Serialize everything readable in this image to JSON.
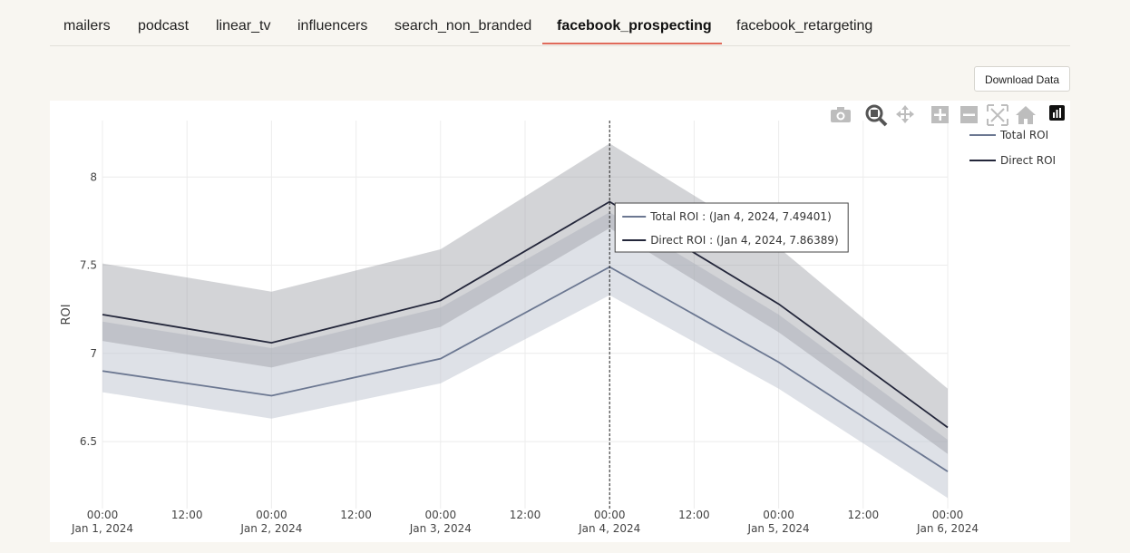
{
  "tabs": [
    {
      "label": "mailers"
    },
    {
      "label": "podcast"
    },
    {
      "label": "linear_tv"
    },
    {
      "label": "influencers"
    },
    {
      "label": "search_non_branded"
    },
    {
      "label": "facebook_prospecting",
      "active": true
    },
    {
      "label": "facebook_retargeting"
    }
  ],
  "download_label": "Download Data",
  "modebar": [
    "camera-icon",
    "zoom-icon",
    "pan-icon",
    "zoom-in-icon",
    "zoom-out-icon",
    "autoscale-icon",
    "reset-axes-icon",
    "plotly-logo-icon"
  ],
  "chart_data": {
    "type": "line",
    "ylabel": "ROI",
    "ylim": [
      6.12,
      8.32
    ],
    "yticks": [
      6.5,
      7,
      7.5,
      8
    ],
    "x": [
      "2024-01-01",
      "2024-01-02",
      "2024-01-03",
      "2024-01-04",
      "2024-01-05",
      "2024-01-06"
    ],
    "xticks": [
      {
        "l1": "00:00",
        "l2": "Jan 1, 2024"
      },
      {
        "l1": "12:00",
        "l2": ""
      },
      {
        "l1": "00:00",
        "l2": "Jan 2, 2024"
      },
      {
        "l1": "12:00",
        "l2": ""
      },
      {
        "l1": "00:00",
        "l2": "Jan 3, 2024"
      },
      {
        "l1": "12:00",
        "l2": ""
      },
      {
        "l1": "00:00",
        "l2": "Jan 4, 2024"
      },
      {
        "l1": "12:00",
        "l2": ""
      },
      {
        "l1": "00:00",
        "l2": "Jan 5, 2024"
      },
      {
        "l1": "12:00",
        "l2": ""
      },
      {
        "l1": "00:00",
        "l2": "Jan 6, 2024"
      }
    ],
    "series": [
      {
        "name": "Total ROI",
        "color": "#6b7791",
        "band_color": "#dfe1e6",
        "values": [
          6.9,
          6.76,
          6.97,
          7.49,
          6.95,
          6.33
        ],
        "upper": [
          7.18,
          7.03,
          7.26,
          7.8,
          7.22,
          6.51
        ],
        "lower": [
          6.78,
          6.63,
          6.83,
          7.33,
          6.8,
          6.18
        ]
      },
      {
        "name": "Direct ROI",
        "color": "#23263a",
        "band_color": "#d2d3d5",
        "values": [
          7.22,
          7.06,
          7.3,
          7.86,
          7.28,
          6.58
        ],
        "upper": [
          7.51,
          7.35,
          7.59,
          8.19,
          7.6,
          6.8
        ],
        "lower": [
          7.07,
          6.92,
          7.15,
          7.71,
          7.12,
          6.43
        ]
      }
    ],
    "hover": {
      "date_index": 3,
      "lines": [
        "Total ROI : (Jan 4, 2024, 7.49401)",
        "Direct ROI : (Jan 4, 2024, 7.86389)"
      ]
    },
    "legend_position": "top-right"
  }
}
